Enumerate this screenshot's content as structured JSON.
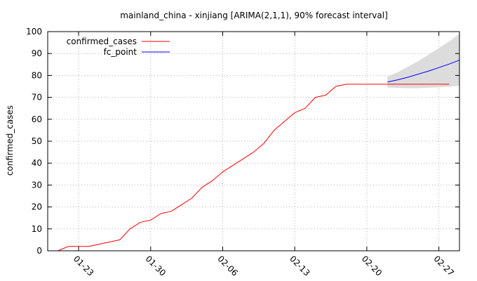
{
  "chart_data": {
    "type": "line",
    "title": "mainland_china - xinjiang [ARIMA(2,1,1), 90% forecast interval]",
    "xlabel": "",
    "ylabel": "confirmed_cases",
    "ylim": [
      0,
      100
    ],
    "yticks": [
      0,
      10,
      20,
      30,
      40,
      50,
      60,
      70,
      80,
      90,
      100
    ],
    "xlim": [
      "2020-01-20",
      "2020-02-29"
    ],
    "xticks": [
      {
        "date": "2020-01-23",
        "label": "01-23"
      },
      {
        "date": "2020-01-30",
        "label": "01-30"
      },
      {
        "date": "2020-02-06",
        "label": "02-06"
      },
      {
        "date": "2020-02-13",
        "label": "02-13"
      },
      {
        "date": "2020-02-20",
        "label": "02-20"
      },
      {
        "date": "2020-02-27",
        "label": "02-27"
      }
    ],
    "grid": true,
    "legend_position": "top-left",
    "series": [
      {
        "name": "confirmed_cases",
        "color": "#ff0000",
        "points": [
          [
            "2020-01-21",
            0
          ],
          [
            "2020-01-22",
            2
          ],
          [
            "2020-01-23",
            2
          ],
          [
            "2020-01-24",
            2
          ],
          [
            "2020-01-25",
            3
          ],
          [
            "2020-01-26",
            4
          ],
          [
            "2020-01-27",
            5
          ],
          [
            "2020-01-28",
            10
          ],
          [
            "2020-01-29",
            13
          ],
          [
            "2020-01-30",
            14
          ],
          [
            "2020-01-31",
            17
          ],
          [
            "2020-02-01",
            18
          ],
          [
            "2020-02-02",
            21
          ],
          [
            "2020-02-03",
            24
          ],
          [
            "2020-02-04",
            29
          ],
          [
            "2020-02-05",
            32
          ],
          [
            "2020-02-06",
            36
          ],
          [
            "2020-02-07",
            39
          ],
          [
            "2020-02-08",
            42
          ],
          [
            "2020-02-09",
            45
          ],
          [
            "2020-02-10",
            49
          ],
          [
            "2020-02-11",
            55
          ],
          [
            "2020-02-12",
            59
          ],
          [
            "2020-02-13",
            63
          ],
          [
            "2020-02-14",
            65
          ],
          [
            "2020-02-15",
            70
          ],
          [
            "2020-02-16",
            71
          ],
          [
            "2020-02-17",
            75
          ],
          [
            "2020-02-18",
            76
          ],
          [
            "2020-02-19",
            76
          ],
          [
            "2020-02-20",
            76
          ],
          [
            "2020-02-21",
            76
          ],
          [
            "2020-02-22",
            76
          ],
          [
            "2020-02-23",
            76
          ],
          [
            "2020-02-24",
            76
          ],
          [
            "2020-02-25",
            76
          ],
          [
            "2020-02-26",
            76
          ],
          [
            "2020-02-27",
            76
          ],
          [
            "2020-02-28",
            76
          ]
        ]
      },
      {
        "name": "fc_point",
        "color": "#0000ff",
        "points": [
          [
            "2020-02-22",
            77
          ],
          [
            "2020-02-23",
            78
          ],
          [
            "2020-02-24",
            79.2
          ],
          [
            "2020-02-25",
            80.6
          ],
          [
            "2020-02-26",
            82
          ],
          [
            "2020-02-27",
            83.6
          ],
          [
            "2020-02-28",
            85.2
          ],
          [
            "2020-02-29",
            87
          ]
        ]
      }
    ],
    "interval": {
      "color": "#dcdcdc",
      "points": [
        [
          "2020-02-22",
          74.5,
          79.5
        ],
        [
          "2020-02-23",
          74.3,
          81.5
        ],
        [
          "2020-02-24",
          74.2,
          84
        ],
        [
          "2020-02-25",
          74.2,
          86.5
        ],
        [
          "2020-02-26",
          74.4,
          89.5
        ],
        [
          "2020-02-27",
          74.6,
          92.5
        ],
        [
          "2020-02-28",
          74.9,
          95.5
        ],
        [
          "2020-02-29",
          75.3,
          99
        ]
      ]
    }
  }
}
